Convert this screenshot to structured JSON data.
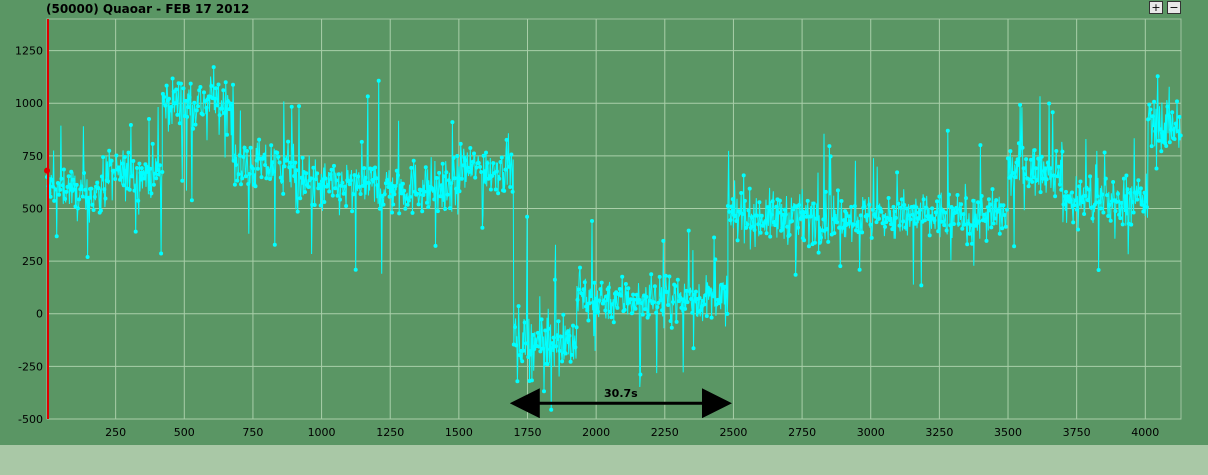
{
  "title": "(50000) Quaoar - FEB 17 2012",
  "zoom_in_label": "+",
  "zoom_out_label": "−",
  "chart_data": {
    "type": "line",
    "title": "(50000) Quaoar - FEB 17 2012",
    "xlim": [
      0,
      4130
    ],
    "ylim": [
      -500,
      1400
    ],
    "x_ticks": [
      250,
      500,
      750,
      1000,
      1250,
      1500,
      1750,
      2000,
      2250,
      2500,
      2750,
      3000,
      3250,
      3500,
      3750,
      4000
    ],
    "y_ticks": [
      -500,
      -250,
      0,
      250,
      500,
      750,
      1000,
      1250
    ],
    "grid": true,
    "series_color": "#00ffff",
    "segments": [
      {
        "x": [
          0,
          95
        ],
        "mean": 600,
        "noise": 90
      },
      {
        "x": [
          95,
          200
        ],
        "mean": 560,
        "noise": 100
      },
      {
        "x": [
          200,
          420
        ],
        "mean": 660,
        "noise": 110
      },
      {
        "x": [
          420,
          680
        ],
        "mean": 1000,
        "noise": 110
      },
      {
        "x": [
          680,
          900
        ],
        "mean": 700,
        "noise": 110
      },
      {
        "x": [
          900,
          1500
        ],
        "mean": 600,
        "noise": 120
      },
      {
        "x": [
          1500,
          1700
        ],
        "mean": 690,
        "noise": 110
      },
      {
        "x": [
          1700,
          1930
        ],
        "mean": -130,
        "noise": 140
      },
      {
        "x": [
          1930,
          2480
        ],
        "mean": 70,
        "noise": 100
      },
      {
        "x": [
          2480,
          3500
        ],
        "mean": 460,
        "noise": 110
      },
      {
        "x": [
          3500,
          3700
        ],
        "mean": 680,
        "noise": 110
      },
      {
        "x": [
          3700,
          4010
        ],
        "mean": 540,
        "noise": 110
      },
      {
        "x": [
          4010,
          4130
        ],
        "mean": 900,
        "noise": 120
      }
    ],
    "annotation": {
      "label": "30.7s",
      "x_start": 1700,
      "x_end": 2480,
      "y": -425
    }
  }
}
